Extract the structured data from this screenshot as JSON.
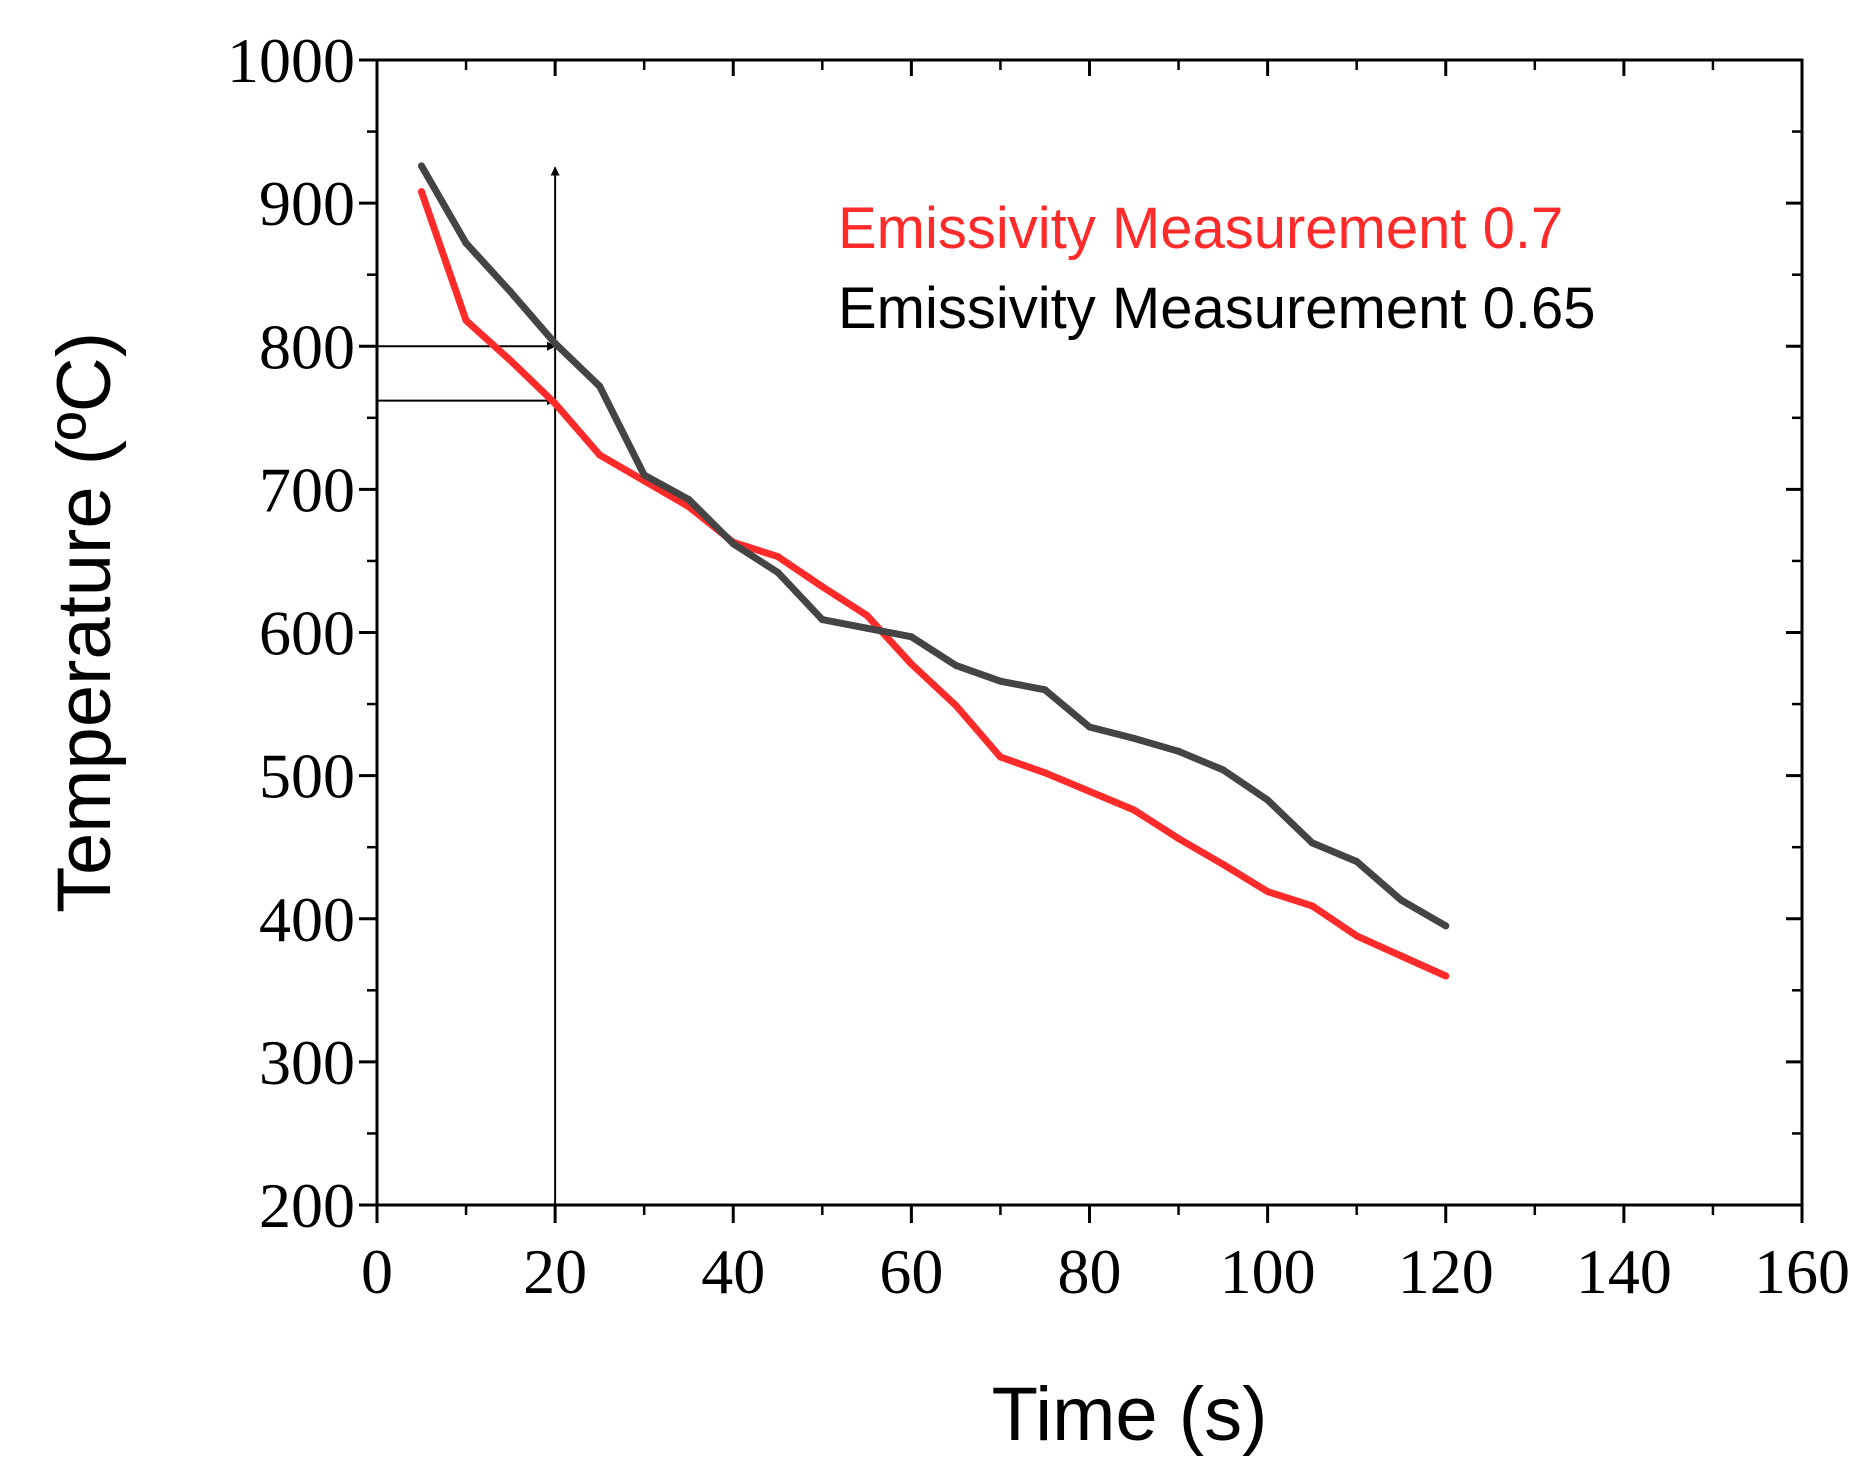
{
  "chart_data": {
    "type": "line",
    "title": "",
    "xlabel": "Time (s)",
    "ylabel": "Temperature (ºC)",
    "xlim": [
      0,
      160
    ],
    "ylim": [
      200,
      1000
    ],
    "xticks": [
      0,
      20,
      40,
      60,
      80,
      100,
      120,
      140,
      160
    ],
    "yticks": [
      200,
      300,
      400,
      500,
      600,
      700,
      800,
      900,
      1000
    ],
    "grid": false,
    "legend_position": "top-right",
    "series": [
      {
        "name": "Emissivity Measurement 0.7",
        "color": "#ff2a2a",
        "x": [
          5,
          10,
          15,
          20,
          25,
          30,
          35,
          40,
          45,
          50,
          55,
          60,
          65,
          70,
          75,
          80,
          85,
          90,
          95,
          100,
          105,
          110,
          115,
          120
        ],
        "y": [
          908,
          818,
          790,
          760,
          724,
          706,
          688,
          663,
          653,
          632,
          612,
          578,
          549,
          513,
          502,
          489,
          476,
          456,
          438,
          419,
          409,
          388,
          374,
          360
        ]
      },
      {
        "name": "Emissivity Measurement 0.65",
        "color": "#444444",
        "x": [
          5,
          10,
          15,
          20,
          25,
          30,
          35,
          40,
          45,
          50,
          55,
          60,
          65,
          70,
          75,
          80,
          85,
          90,
          95,
          100,
          105,
          110,
          115,
          120
        ],
        "y": [
          926,
          872,
          838,
          802,
          772,
          710,
          693,
          662,
          642,
          609,
          603,
          597,
          577,
          566,
          560,
          534,
          526,
          517,
          504,
          483,
          453,
          440,
          413,
          395
        ]
      }
    ],
    "annotations": [
      {
        "type": "vertical-arrow",
        "x": 20,
        "y_from": 200,
        "y_to": 925
      },
      {
        "type": "horizontal-arrow",
        "y": 800,
        "x_from": 0,
        "x_to": 20
      },
      {
        "type": "horizontal-arrow",
        "y": 762,
        "x_from": 0,
        "x_to": 20
      }
    ]
  }
}
